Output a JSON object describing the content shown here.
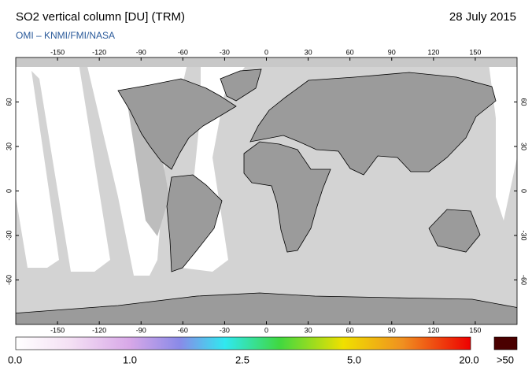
{
  "title": "SO2 vertical column [DU] (TRM)",
  "source": "OMI  –  KNMI/FMI/NASA",
  "date": "28 July 2015",
  "map": {
    "lon_ticks": [
      -150,
      -120,
      -90,
      -60,
      -30,
      0,
      30,
      60,
      90,
      120,
      150
    ],
    "lat_ticks": [
      60,
      30,
      0,
      -30,
      -60
    ]
  },
  "colorbar": {
    "labels": [
      "0.0",
      "1.0",
      "2.5",
      "5.0",
      "20.0",
      ">50"
    ]
  }
}
